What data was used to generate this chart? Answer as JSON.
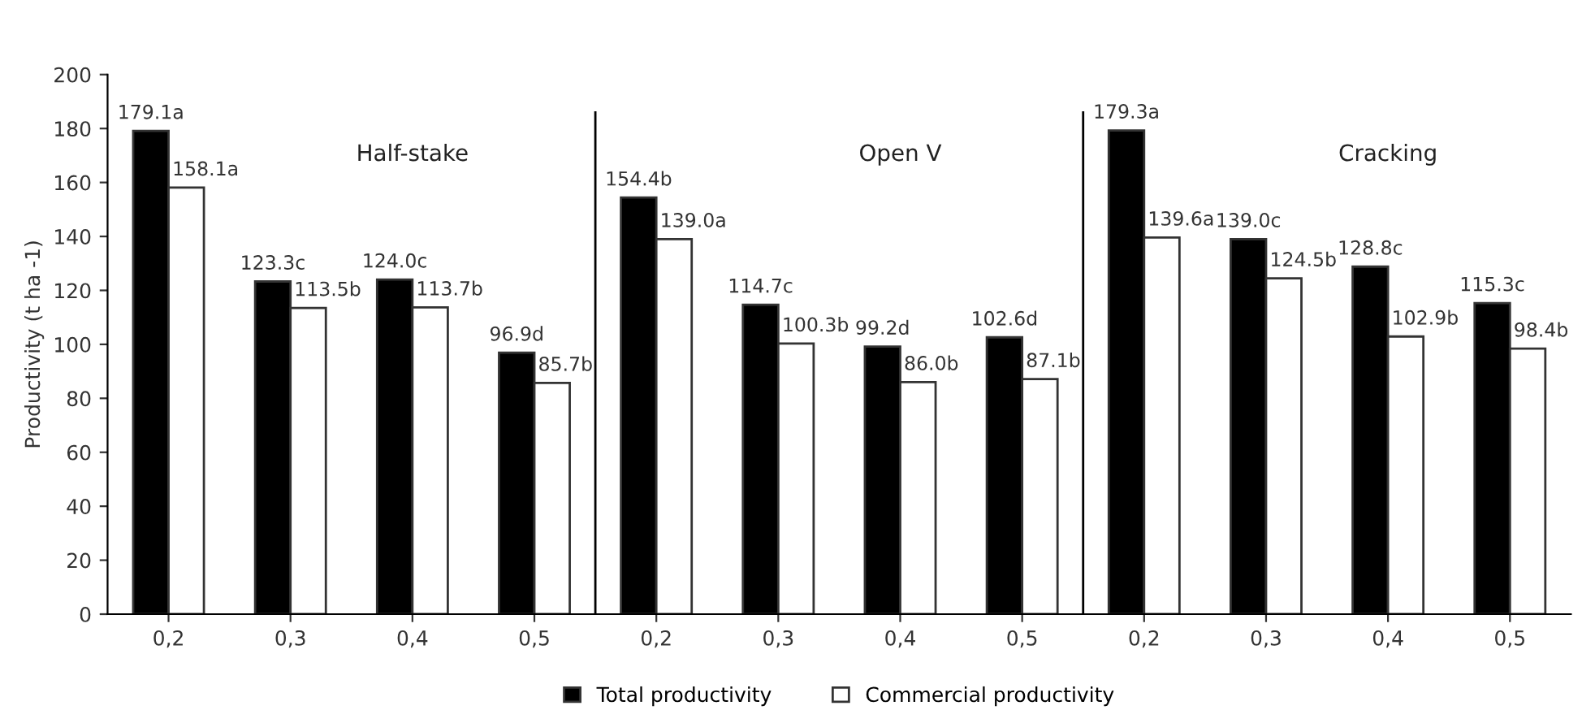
{
  "chart_data": {
    "type": "bar",
    "categories": [
      "0,2",
      "0,3",
      "0,4",
      "0,5",
      "0,2",
      "0,3",
      "0,4",
      "0,5",
      "0,2",
      "0,3",
      "0,4",
      "0,5"
    ],
    "series": [
      {
        "name": "Total productivity",
        "color": "#000000",
        "values": [
          179.1,
          123.3,
          124.0,
          96.9,
          154.4,
          114.7,
          99.2,
          102.6,
          179.3,
          139.0,
          128.8,
          115.3
        ],
        "value_labels": [
          "179.1a",
          "123.3c",
          "124.0c",
          "96.9d",
          "154.4b",
          "114.7c",
          "99.2d",
          "102.6d",
          "179.3a",
          "139.0c",
          "128.8c",
          "115.3c"
        ]
      },
      {
        "name": "Commercial productivity",
        "color": "#ffffff",
        "values": [
          158.1,
          113.5,
          113.7,
          85.7,
          139.0,
          100.3,
          86.0,
          87.1,
          139.6,
          124.5,
          102.9,
          98.4
        ],
        "value_labels": [
          "158.1a",
          "113.5b",
          "113.7b",
          "85.7b",
          "139.0a",
          "100.3b",
          "86.0b",
          "87.1b",
          "139.6a",
          "124.5b",
          "102.9b",
          "98.4b"
        ]
      }
    ],
    "ylabel": "Productivity (t ha -1)",
    "ylim": [
      0,
      200
    ],
    "yticks": [
      0,
      20,
      40,
      60,
      80,
      100,
      120,
      140,
      160,
      180,
      200
    ],
    "annotations": [
      "Half-stake",
      "Open V",
      "Cracking"
    ],
    "legend": "bottom",
    "grid": false
  }
}
